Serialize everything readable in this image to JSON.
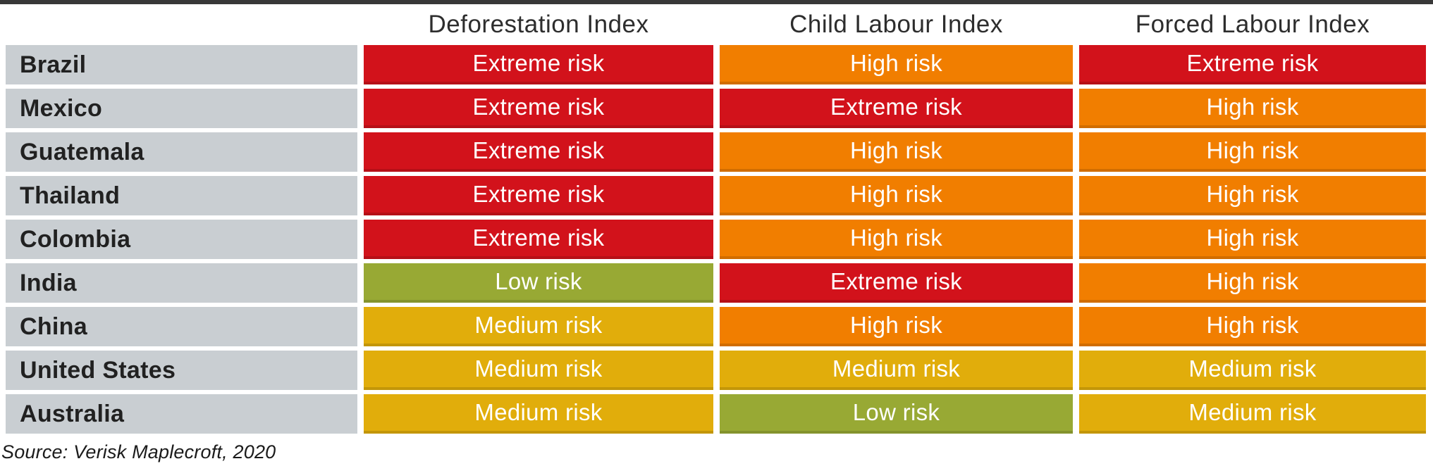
{
  "chart_data": {
    "type": "table",
    "columns": [
      "Deforestation Index",
      "Child Labour Index",
      "Forced Labour Index"
    ],
    "rows": [
      {
        "country": "Brazil",
        "values": [
          "Extreme risk",
          "High risk",
          "Extreme risk"
        ]
      },
      {
        "country": "Mexico",
        "values": [
          "Extreme risk",
          "Extreme risk",
          "High risk"
        ]
      },
      {
        "country": "Guatemala",
        "values": [
          "Extreme risk",
          "High risk",
          "High risk"
        ]
      },
      {
        "country": "Thailand",
        "values": [
          "Extreme risk",
          "High risk",
          "High risk"
        ]
      },
      {
        "country": "Colombia",
        "values": [
          "Extreme risk",
          "High risk",
          "High risk"
        ]
      },
      {
        "country": "India",
        "values": [
          "Low risk",
          "Extreme risk",
          "High risk"
        ]
      },
      {
        "country": "China",
        "values": [
          "Medium risk",
          "High risk",
          "High risk"
        ]
      },
      {
        "country": "United States",
        "values": [
          "Medium risk",
          "Medium risk",
          "Medium risk"
        ]
      },
      {
        "country": "Australia",
        "values": [
          "Medium risk",
          "Low risk",
          "Medium risk"
        ]
      }
    ],
    "risk_levels": [
      "Low risk",
      "Medium risk",
      "High risk",
      "Extreme risk"
    ],
    "source": "Source: Verisk Maplecroft, 2020",
    "legend_position": "none",
    "grid": false
  },
  "colors": {
    "risk": {
      "Extreme risk": "#d2121b",
      "High risk": "#f17e00",
      "Medium risk": "#e1ad0b",
      "Low risk": "#98a934"
    },
    "country_bg": "#c9ced2",
    "top_bar": "#383838"
  }
}
